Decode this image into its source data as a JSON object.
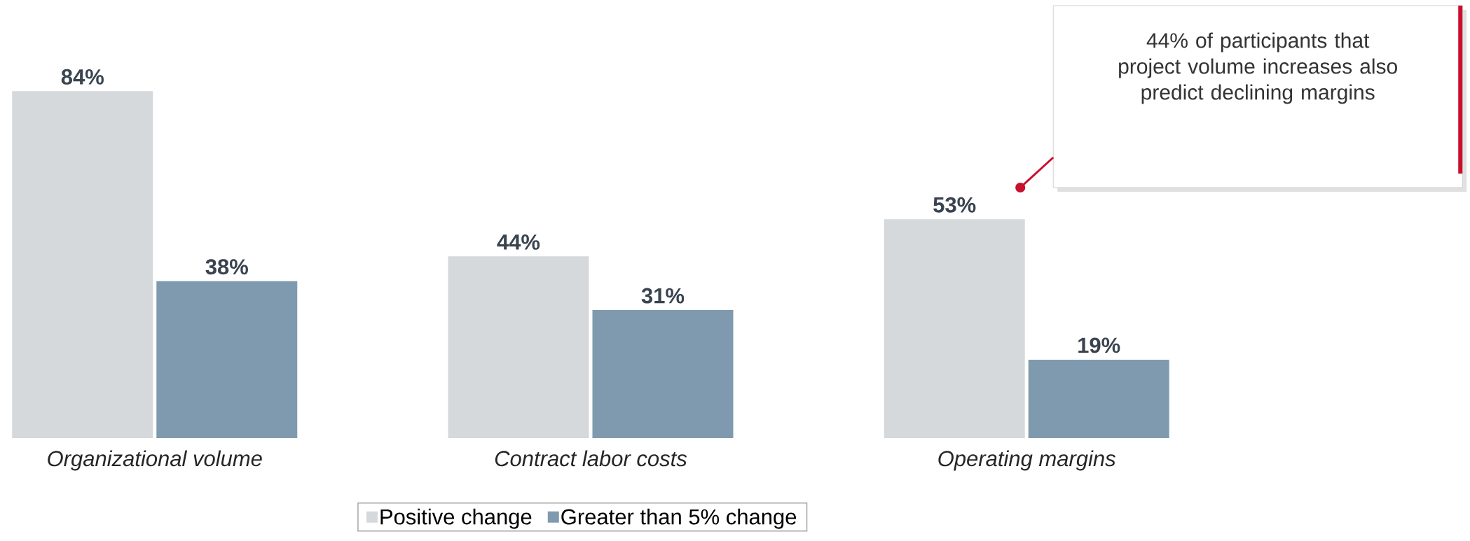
{
  "chart_data": {
    "type": "bar",
    "categories": [
      "Organizational volume",
      "Contract labor costs",
      "Operating margins"
    ],
    "series": [
      {
        "name": "Positive change",
        "color": "#d5d9db",
        "values": [
          84,
          44,
          53
        ],
        "value_labels": [
          "84%",
          "44%",
          "53%"
        ]
      },
      {
        "name": "Greater than 5% change",
        "color": "#7f9aae",
        "values": [
          38,
          31,
          19
        ],
        "value_labels": [
          "38%",
          "31%",
          "19%"
        ]
      }
    ],
    "annotations": [
      "44% of participants that project volume increases also predict declining margins"
    ],
    "legend": "bottom"
  }
}
